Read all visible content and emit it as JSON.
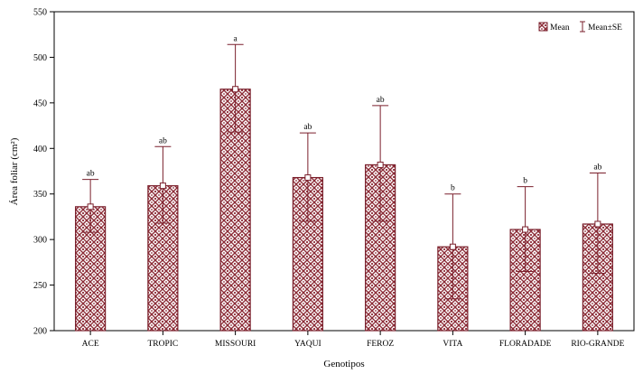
{
  "chart_data": {
    "type": "bar",
    "xlabel": "Genotipos",
    "ylabel": "Área foliar (cm²)",
    "ylim": [
      200,
      550
    ],
    "yticks": [
      200,
      250,
      300,
      350,
      400,
      450,
      500,
      550
    ],
    "categories": [
      "ACE",
      "TROPIC",
      "MISSOURI",
      "YAQUI",
      "FEROZ",
      "VITA",
      "FLORADADE",
      "RIO-GRANDE"
    ],
    "series": [
      {
        "name": "Mean",
        "values": [
          336,
          359,
          465,
          368,
          382,
          292,
          311,
          317
        ],
        "se_low": [
          308,
          318,
          418,
          320,
          320,
          235,
          265,
          263
        ],
        "se_high": [
          366,
          402,
          514,
          417,
          447,
          350,
          358,
          373
        ]
      }
    ],
    "significance": [
      "ab",
      "ab",
      "a",
      "ab",
      "ab",
      "b",
      "b",
      "ab"
    ],
    "legend": {
      "position": "top-right",
      "mean_label": "Mean",
      "se_label": "Mean±SE"
    },
    "colors": {
      "bar_stroke": "#7a1f2b",
      "pattern_dark": "#8b2b36",
      "pattern_light": "#ffffff",
      "error_bar": "#7a1f2b",
      "axis": "#000000"
    },
    "grid": false
  }
}
